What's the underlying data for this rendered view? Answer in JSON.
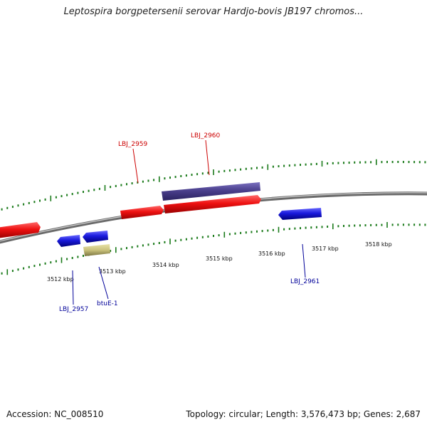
{
  "title": "Leptospira borgpetersenii serovar Hardjo-bovis JB197 chromos...",
  "footer": {
    "accession": "Accession: NC_008510",
    "summary": "Topology: circular; Length: 3,576,473 bp; Genes: 2,687"
  },
  "colors": {
    "backbone": "#8a8a8a",
    "forward_gene": "#ee1111",
    "reverse_gene": "#1a1add",
    "operon": "#4a3f8c",
    "rna": "#c8c07a",
    "tick": "#1a7a1a",
    "forward_label": "#cc0000",
    "reverse_label": "#000099"
  },
  "ruler": {
    "unit": "kbp",
    "labels": [
      "3512 kbp",
      "3513 kbp",
      "3514 kbp",
      "3515 kbp",
      "3516 kbp",
      "3517 kbp",
      "3518 kbp"
    ]
  },
  "gene_labels": {
    "forward": [
      "LBJ_2959",
      "LBJ_2960"
    ],
    "reverse": [
      "LBJ_2957",
      "btuE-1",
      "LBJ_2961"
    ]
  }
}
